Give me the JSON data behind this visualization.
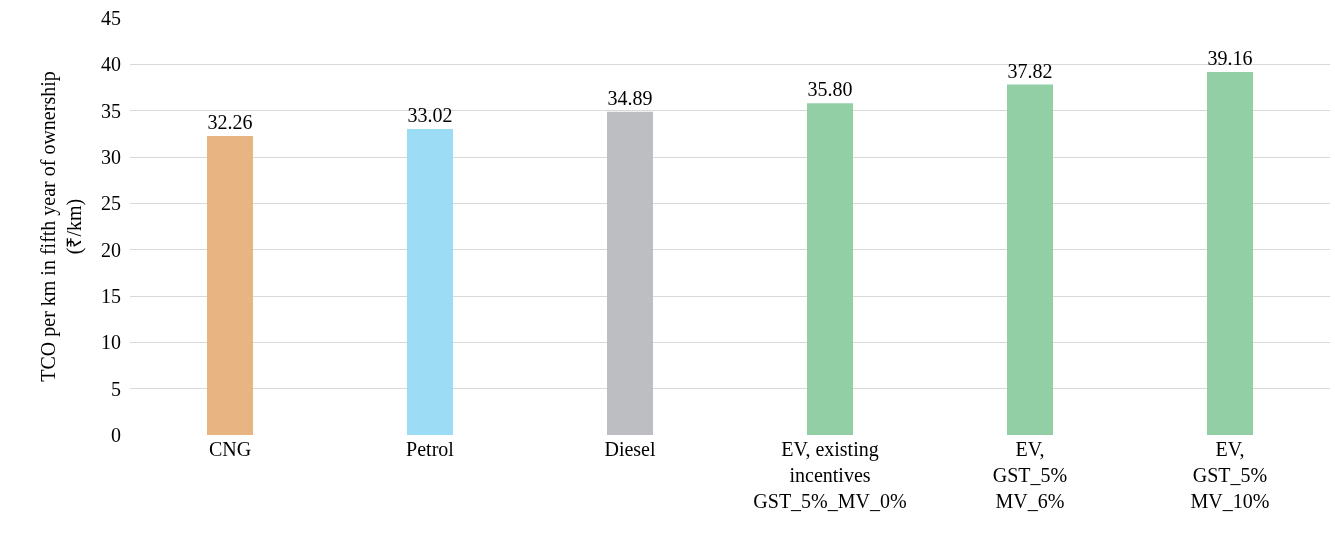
{
  "chart_data": {
    "type": "bar",
    "categories": [
      "CNG",
      "Petrol",
      "Diesel",
      "EV, existing\nincentives\nGST_5%_MV_0%",
      "EV,\nGST_5%\nMV_6%",
      "EV,\nGST_5%\nMV_10%"
    ],
    "values": [
      32.26,
      33.02,
      34.89,
      35.8,
      37.82,
      39.16
    ],
    "value_labels": [
      "32.26",
      "33.02",
      "34.89",
      "35.80",
      "37.82",
      "39.16"
    ],
    "colors": [
      "#e8b482",
      "#9ddcf5",
      "#bdbec2",
      "#92cfa5",
      "#92cfa5",
      "#92cfa5"
    ],
    "ylabel": "TCO per km in fifth year of ownership\n(₹/km)",
    "ylim": [
      0,
      45
    ],
    "yticks": [
      0,
      5,
      10,
      15,
      20,
      25,
      30,
      35,
      40,
      45
    ],
    "grid": "y"
  }
}
